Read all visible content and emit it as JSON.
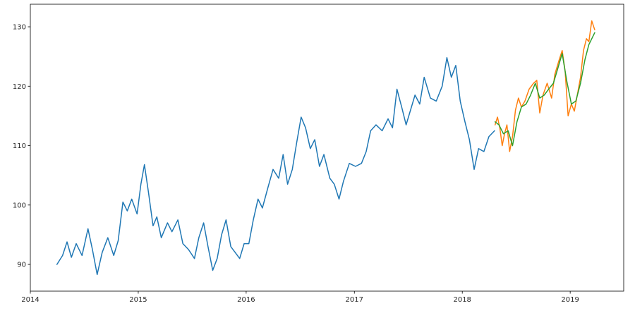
{
  "chart_data": {
    "type": "line",
    "title": "",
    "xlabel": "",
    "ylabel": "",
    "x_type": "date",
    "xlim": [
      "2014-01-01",
      "2019-07-01"
    ],
    "ylim": [
      85.5,
      133.8
    ],
    "x_ticks": [
      "2014-01-01",
      "2015-01-01",
      "2016-01-01",
      "2017-01-01",
      "2018-01-01",
      "2019-01-01"
    ],
    "x_tick_labels": [
      "2014",
      "2015",
      "2016",
      "2017",
      "2018",
      "2019"
    ],
    "y_ticks": [
      90,
      100,
      110,
      120,
      130
    ],
    "y_tick_labels": [
      "90",
      "100",
      "110",
      "120",
      "130"
    ],
    "grid": false,
    "legend": "none",
    "series": [
      {
        "color": "#1f77b4",
        "points": [
          [
            "2014-04-01",
            90.0
          ],
          [
            "2014-04-20",
            91.5
          ],
          [
            "2014-05-05",
            93.8
          ],
          [
            "2014-05-20",
            91.2
          ],
          [
            "2014-06-05",
            93.5
          ],
          [
            "2014-06-25",
            91.5
          ],
          [
            "2014-07-15",
            96.0
          ],
          [
            "2014-07-30",
            92.5
          ],
          [
            "2014-08-15",
            88.3
          ],
          [
            "2014-09-01",
            92.0
          ],
          [
            "2014-09-20",
            94.5
          ],
          [
            "2014-10-10",
            91.5
          ],
          [
            "2014-10-25",
            94.0
          ],
          [
            "2014-11-10",
            100.5
          ],
          [
            "2014-11-25",
            99.0
          ],
          [
            "2014-12-10",
            101.0
          ],
          [
            "2014-12-28",
            98.5
          ],
          [
            "2015-01-10",
            103.5
          ],
          [
            "2015-01-22",
            106.8
          ],
          [
            "2015-02-05",
            102.0
          ],
          [
            "2015-02-20",
            96.5
          ],
          [
            "2015-03-05",
            98.0
          ],
          [
            "2015-03-20",
            94.5
          ],
          [
            "2015-04-10",
            97.0
          ],
          [
            "2015-04-25",
            95.5
          ],
          [
            "2015-05-15",
            97.5
          ],
          [
            "2015-06-01",
            93.5
          ],
          [
            "2015-06-20",
            92.5
          ],
          [
            "2015-07-10",
            91.0
          ],
          [
            "2015-07-25",
            94.5
          ],
          [
            "2015-08-10",
            97.0
          ],
          [
            "2015-08-25",
            93.0
          ],
          [
            "2015-09-10",
            89.0
          ],
          [
            "2015-09-25",
            91.0
          ],
          [
            "2015-10-10",
            95.0
          ],
          [
            "2015-10-25",
            97.5
          ],
          [
            "2015-11-10",
            93.0
          ],
          [
            "2015-11-25",
            92.0
          ],
          [
            "2015-12-10",
            91.0
          ],
          [
            "2015-12-25",
            93.5
          ],
          [
            "2016-01-10",
            93.5
          ],
          [
            "2016-01-25",
            97.5
          ],
          [
            "2016-02-10",
            101.0
          ],
          [
            "2016-02-25",
            99.5
          ],
          [
            "2016-03-15",
            103.0
          ],
          [
            "2016-04-01",
            106.0
          ],
          [
            "2016-04-20",
            104.5
          ],
          [
            "2016-05-05",
            108.5
          ],
          [
            "2016-05-20",
            103.5
          ],
          [
            "2016-06-05",
            106.0
          ],
          [
            "2016-06-20",
            110.5
          ],
          [
            "2016-07-05",
            114.8
          ],
          [
            "2016-07-20",
            113.0
          ],
          [
            "2016-08-05",
            109.5
          ],
          [
            "2016-08-20",
            111.0
          ],
          [
            "2016-09-05",
            106.5
          ],
          [
            "2016-09-20",
            108.5
          ],
          [
            "2016-10-10",
            104.5
          ],
          [
            "2016-10-25",
            103.5
          ],
          [
            "2016-11-10",
            101.0
          ],
          [
            "2016-11-25",
            104.0
          ],
          [
            "2016-12-15",
            107.0
          ],
          [
            "2017-01-05",
            106.5
          ],
          [
            "2017-01-25",
            107.0
          ],
          [
            "2017-02-10",
            109.0
          ],
          [
            "2017-02-25",
            112.5
          ],
          [
            "2017-03-15",
            113.5
          ],
          [
            "2017-04-05",
            112.5
          ],
          [
            "2017-04-25",
            114.5
          ],
          [
            "2017-05-10",
            113.0
          ],
          [
            "2017-05-25",
            119.5
          ],
          [
            "2017-06-10",
            116.5
          ],
          [
            "2017-06-25",
            113.5
          ],
          [
            "2017-07-10",
            116.0
          ],
          [
            "2017-07-25",
            118.5
          ],
          [
            "2017-08-10",
            117.0
          ],
          [
            "2017-08-25",
            121.5
          ],
          [
            "2017-09-15",
            118.0
          ],
          [
            "2017-10-05",
            117.5
          ],
          [
            "2017-10-25",
            120.0
          ],
          [
            "2017-11-10",
            124.8
          ],
          [
            "2017-11-25",
            121.5
          ],
          [
            "2017-12-10",
            123.5
          ],
          [
            "2017-12-25",
            117.5
          ],
          [
            "2018-01-10",
            114.0
          ],
          [
            "2018-01-25",
            111.0
          ],
          [
            "2018-02-10",
            106.0
          ],
          [
            "2018-02-25",
            109.5
          ],
          [
            "2018-03-15",
            109.0
          ],
          [
            "2018-04-01",
            111.5
          ],
          [
            "2018-04-20",
            112.5
          ]
        ]
      },
      {
        "color": "#ff7f0e",
        "points": [
          [
            "2018-04-22",
            113.5
          ],
          [
            "2018-04-30",
            114.8
          ],
          [
            "2018-05-08",
            113.0
          ],
          [
            "2018-05-16",
            110.0
          ],
          [
            "2018-05-24",
            112.0
          ],
          [
            "2018-06-01",
            113.5
          ],
          [
            "2018-06-10",
            109.0
          ],
          [
            "2018-06-20",
            111.5
          ],
          [
            "2018-06-30",
            116.0
          ],
          [
            "2018-07-10",
            118.0
          ],
          [
            "2018-07-20",
            116.5
          ],
          [
            "2018-08-01",
            117.5
          ],
          [
            "2018-08-15",
            119.5
          ],
          [
            "2018-08-30",
            120.5
          ],
          [
            "2018-09-10",
            121.0
          ],
          [
            "2018-09-20",
            115.5
          ],
          [
            "2018-10-01",
            118.5
          ],
          [
            "2018-10-15",
            120.5
          ],
          [
            "2018-10-30",
            118.0
          ],
          [
            "2018-11-10",
            122.0
          ],
          [
            "2018-11-25",
            124.5
          ],
          [
            "2018-12-05",
            126.0
          ],
          [
            "2018-12-15",
            122.5
          ],
          [
            "2018-12-25",
            115.0
          ],
          [
            "2019-01-05",
            117.0
          ],
          [
            "2019-01-15",
            115.8
          ],
          [
            "2019-01-25",
            118.5
          ],
          [
            "2019-02-05",
            121.5
          ],
          [
            "2019-02-15",
            126.0
          ],
          [
            "2019-02-25",
            128.0
          ],
          [
            "2019-03-05",
            127.5
          ],
          [
            "2019-03-15",
            131.0
          ],
          [
            "2019-03-25",
            129.5
          ]
        ]
      },
      {
        "color": "#2ca02c",
        "points": [
          [
            "2018-04-22",
            114.0
          ],
          [
            "2018-05-05",
            113.5
          ],
          [
            "2018-05-20",
            112.0
          ],
          [
            "2018-06-05",
            112.5
          ],
          [
            "2018-06-20",
            110.0
          ],
          [
            "2018-07-05",
            114.0
          ],
          [
            "2018-07-20",
            116.5
          ],
          [
            "2018-08-05",
            117.0
          ],
          [
            "2018-08-20",
            118.5
          ],
          [
            "2018-09-05",
            120.5
          ],
          [
            "2018-09-20",
            118.0
          ],
          [
            "2018-10-05",
            118.5
          ],
          [
            "2018-10-20",
            119.5
          ],
          [
            "2018-11-05",
            120.5
          ],
          [
            "2018-11-20",
            123.0
          ],
          [
            "2018-12-05",
            125.5
          ],
          [
            "2018-12-20",
            121.0
          ],
          [
            "2019-01-05",
            117.0
          ],
          [
            "2019-01-20",
            117.5
          ],
          [
            "2019-02-05",
            120.5
          ],
          [
            "2019-02-20",
            124.5
          ],
          [
            "2019-03-05",
            127.0
          ],
          [
            "2019-03-20",
            128.5
          ],
          [
            "2019-03-25",
            129.0
          ]
        ]
      }
    ]
  }
}
